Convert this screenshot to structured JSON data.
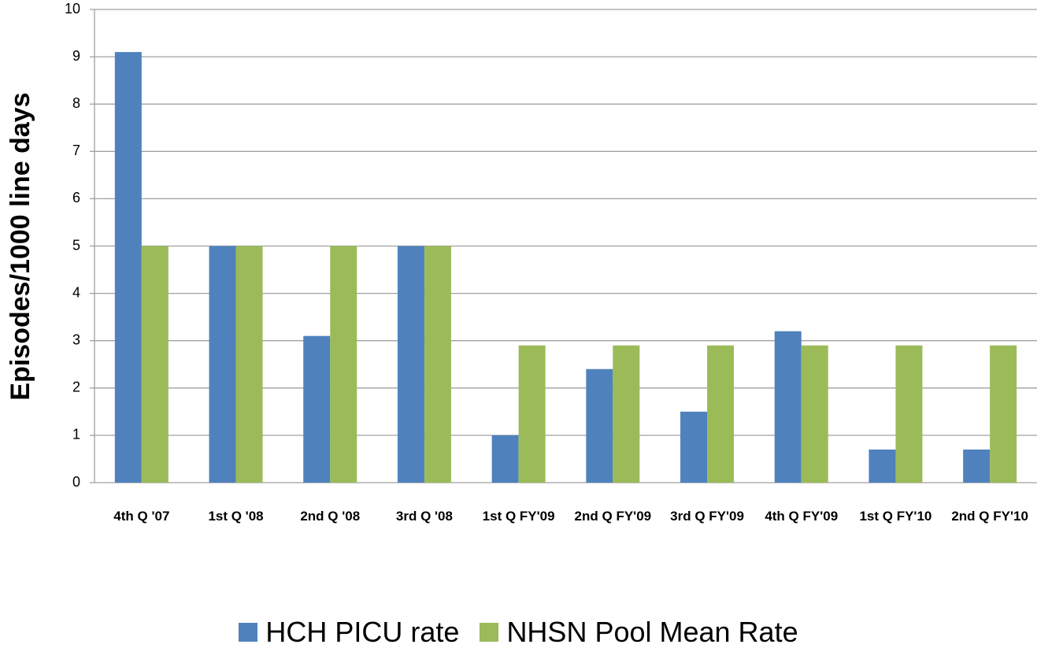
{
  "chart_data": {
    "type": "bar",
    "y_label": "Episodes/1000 line days",
    "categories": [
      "4th Q '07",
      "1st Q '08",
      "2nd Q '08",
      "3rd Q '08",
      "1st Q FY'09",
      "2nd Q FY'09",
      "3rd Q FY'09",
      "4th Q FY'09",
      "1st Q FY'10",
      "2nd Q FY'10"
    ],
    "series": [
      {
        "name": "HCH PICU rate",
        "color": "#4f81bd",
        "values": [
          9.1,
          5,
          3.1,
          5,
          1,
          2.4,
          1.5,
          3.2,
          0.7,
          0.7
        ]
      },
      {
        "name": "NHSN Pool Mean Rate",
        "color": "#9bbb59",
        "values": [
          5,
          5,
          5,
          5,
          2.9,
          2.9,
          2.9,
          2.9,
          2.9,
          2.9
        ]
      }
    ],
    "ylim": [
      0,
      10
    ],
    "yticks": [
      0,
      1,
      2,
      3,
      4,
      5,
      6,
      7,
      8,
      9,
      10
    ],
    "grid": true,
    "legend": "bottom"
  }
}
